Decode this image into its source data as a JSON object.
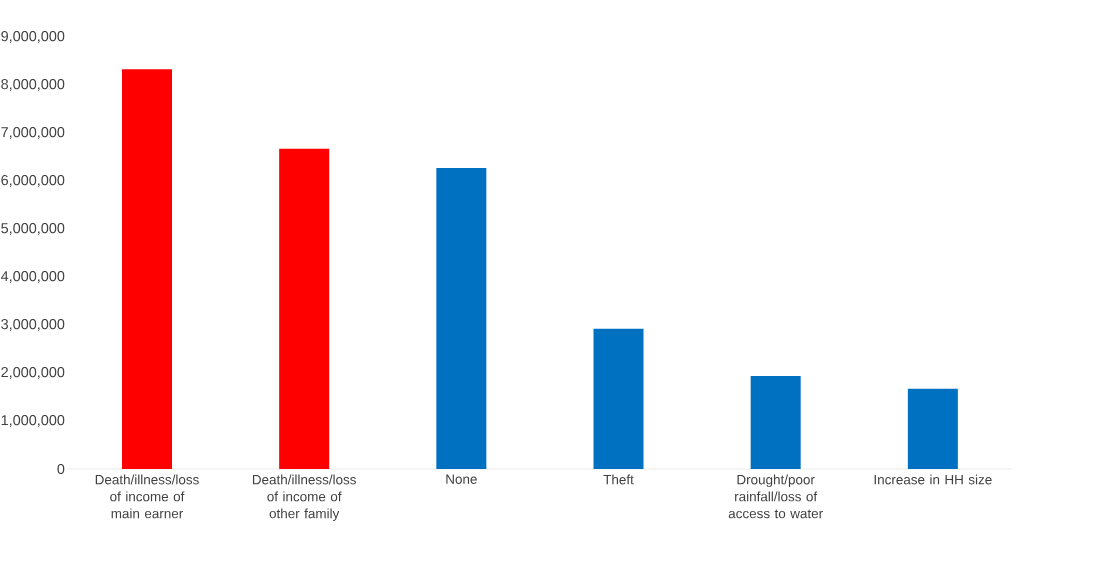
{
  "chart_data": {
    "type": "bar",
    "categories": [
      "Death/illness/loss of income of main earner",
      "Death/illness/loss of income of other family",
      "None",
      "Theft",
      "Drought/poor rainfall/loss of access to water",
      "Increase in HH size"
    ],
    "values": [
      8330000,
      6670000,
      6270000,
      2920000,
      1940000,
      1670000
    ],
    "colors": [
      "#ff0000",
      "#ff0000",
      "#0070c0",
      "#0070c0",
      "#0070c0",
      "#0070c0"
    ],
    "ylim": [
      0,
      9000000
    ],
    "yticks": [
      {
        "value": 0,
        "label": "0"
      },
      {
        "value": 1000000,
        "label": "1,000,000"
      },
      {
        "value": 2000000,
        "label": "2,000,000"
      },
      {
        "value": 3000000,
        "label": "3,000,000"
      },
      {
        "value": 4000000,
        "label": "4,000,000"
      },
      {
        "value": 5000000,
        "label": "5,000,000"
      },
      {
        "value": 6000000,
        "label": "6,000,000"
      },
      {
        "value": 7000000,
        "label": "7,000,000"
      },
      {
        "value": 8000000,
        "label": "8,000,000"
      },
      {
        "value": 9000000,
        "label": "9,000,000"
      }
    ],
    "grid": false
  }
}
